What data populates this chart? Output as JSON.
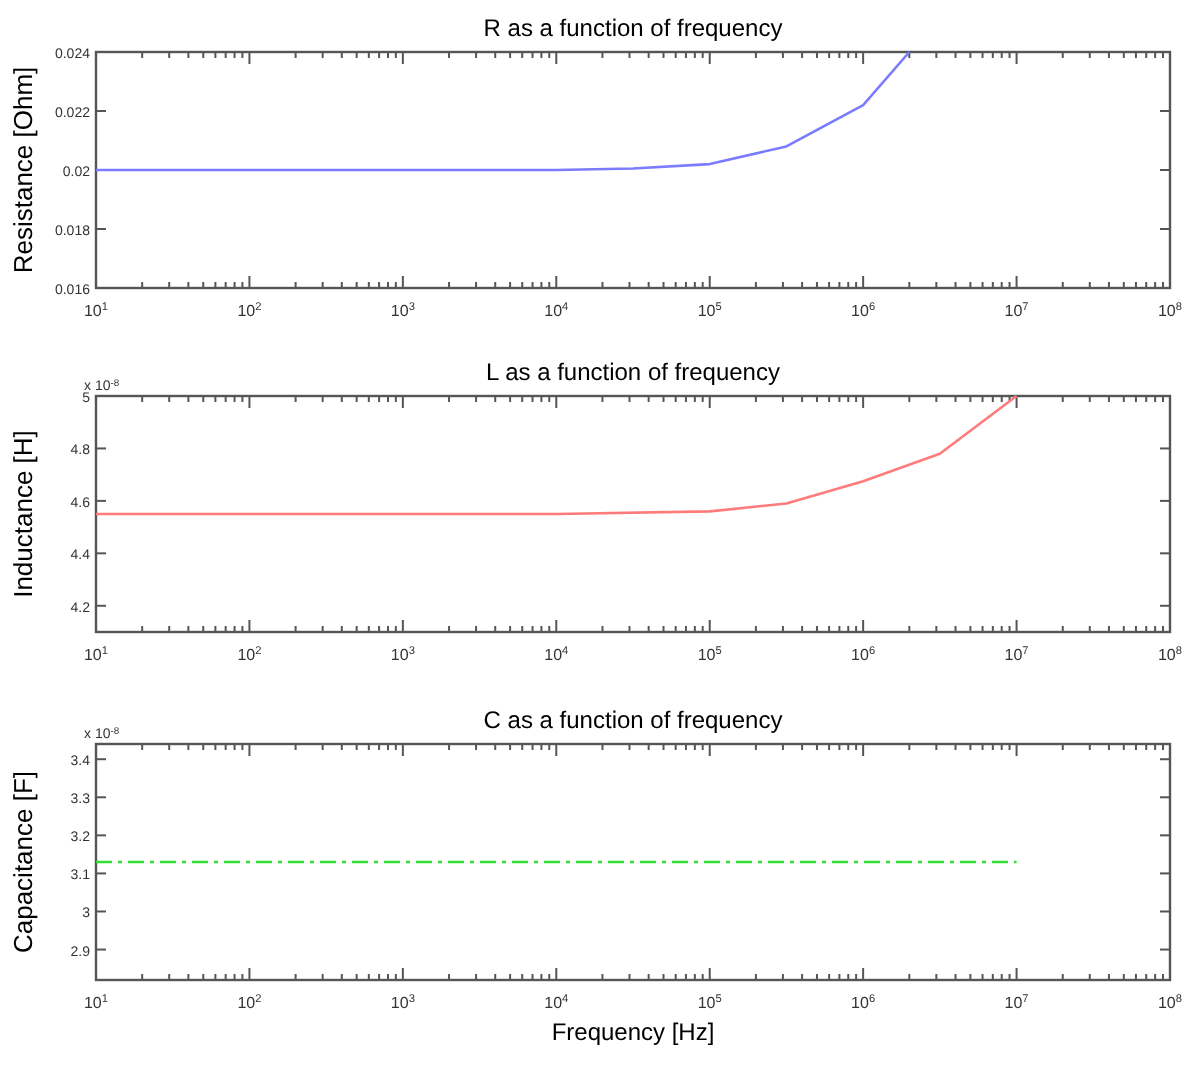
{
  "chart_data": [
    {
      "type": "line",
      "title": "R as a function of frequency",
      "ylabel": "Resistance [Ohm]",
      "log": "x",
      "grid": false,
      "line_style": "solid",
      "xlim": [
        10,
        100000000
      ],
      "xticks": [
        {
          "value": 10,
          "label": "10$^{1}$"
        },
        {
          "value": 100,
          "label": "10$^{2}$"
        },
        {
          "value": 1000,
          "label": "10$^{3}$"
        },
        {
          "value": 10000,
          "label": "10$^{4}$"
        },
        {
          "value": 100000,
          "label": "10$^{5}$"
        },
        {
          "value": 1000000,
          "label": "10$^{6}$"
        },
        {
          "value": 10000000,
          "label": "10$^{7}$"
        },
        {
          "value": 100000000,
          "label": "10$^{8}$"
        }
      ],
      "ylim": [
        0.016,
        0.024
      ],
      "yticks": [
        0.016,
        0.018,
        0.02,
        0.022,
        0.024
      ],
      "series": [
        {
          "color": "#7b7bff",
          "x": [
            10,
            1000,
            10000,
            31600,
            100000,
            316000,
            1000000,
            2000000
          ],
          "values": [
            0.02,
            0.02,
            0.02,
            0.02005,
            0.0202,
            0.0208,
            0.0222,
            0.024
          ]
        }
      ]
    },
    {
      "type": "line",
      "title": "L as a function of frequency",
      "ylabel": "Inductance [H]",
      "log": "x",
      "grid": false,
      "line_style": "solid",
      "annotations": [
        "x 10$^{-8}$"
      ],
      "xlim": [
        10,
        100000000
      ],
      "xticks": [
        {
          "value": 10,
          "label": "10$^{1}$"
        },
        {
          "value": 100,
          "label": "10$^{2}$"
        },
        {
          "value": 1000,
          "label": "10$^{3}$"
        },
        {
          "value": 10000,
          "label": "10$^{4}$"
        },
        {
          "value": 100000,
          "label": "10$^{5}$"
        },
        {
          "value": 1000000,
          "label": "10$^{6}$"
        },
        {
          "value": 10000000,
          "label": "10$^{7}$"
        },
        {
          "value": 100000000,
          "label": "10$^{8}$"
        }
      ],
      "ylim": [
        4.1,
        5
      ],
      "yticks": [
        4.2,
        4.4,
        4.6,
        4.8,
        5
      ],
      "series": [
        {
          "color": "#ff7b7b",
          "x": [
            10,
            1000,
            10000,
            100000,
            316000,
            1000000,
            3160000,
            10000000
          ],
          "values": [
            4.55,
            4.55,
            4.55,
            4.56,
            4.59,
            4.675,
            4.78,
            5
          ]
        }
      ]
    },
    {
      "type": "line",
      "title": "C as a function of frequency",
      "ylabel": "Capacitance [F]",
      "xlabel": "Frequency [Hz]",
      "log": "x",
      "grid": false,
      "line_style": "dashed",
      "annotations": [
        "x 10$^{-8}$"
      ],
      "xlim": [
        10,
        100000000
      ],
      "xticks": [
        {
          "value": 10,
          "label": "10$^{1}$"
        },
        {
          "value": 100,
          "label": "10$^{2}$"
        },
        {
          "value": 1000,
          "label": "10$^{3}$"
        },
        {
          "value": 10000,
          "label": "10$^{4}$"
        },
        {
          "value": 100000,
          "label": "10$^{5}$"
        },
        {
          "value": 1000000,
          "label": "10$^{6}$"
        },
        {
          "value": 10000000,
          "label": "10$^{7}$"
        },
        {
          "value": 100000000,
          "label": "10$^{8}$"
        }
      ],
      "ylim": [
        2.82,
        3.44
      ],
      "yticks": [
        2.9,
        3,
        3.1,
        3.2,
        3.3,
        3.4
      ],
      "series": [
        {
          "color": "#33dd33",
          "x": [
            10,
            10000000
          ],
          "values": [
            3.13,
            3.13
          ]
        }
      ]
    }
  ]
}
